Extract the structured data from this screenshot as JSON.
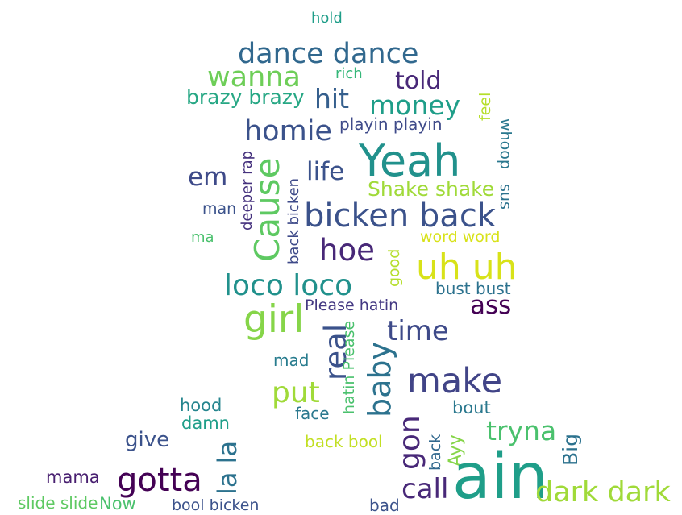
{
  "words": [
    {
      "text": "hold",
      "color": "#1f9e89"
    },
    {
      "text": "dance dance",
      "color": "#31688e"
    },
    {
      "text": "wanna",
      "color": "#6ece58"
    },
    {
      "text": "rich",
      "color": "#35b779"
    },
    {
      "text": "told",
      "color": "#482878"
    },
    {
      "text": "brazy brazy",
      "color": "#26a784"
    },
    {
      "text": "hit",
      "color": "#355f8d"
    },
    {
      "text": "money",
      "color": "#1f9e89"
    },
    {
      "text": "feel",
      "color": "#b5de2b"
    },
    {
      "text": "homie",
      "color": "#3b528b"
    },
    {
      "text": "playin playin",
      "color": "#3e4a89"
    },
    {
      "text": "whoop",
      "color": "#2a788e"
    },
    {
      "text": "Yeah",
      "color": "#21918c"
    },
    {
      "text": "deeper rap",
      "color": "#46327e"
    },
    {
      "text": "Cause",
      "color": "#5ec962"
    },
    {
      "text": "life",
      "color": "#3b528b"
    },
    {
      "text": "em",
      "color": "#3e4a89"
    },
    {
      "text": "Shake shake",
      "color": "#a0da39"
    },
    {
      "text": "sus",
      "color": "#2c728e"
    },
    {
      "text": "back bicken",
      "color": "#3e4a89"
    },
    {
      "text": "man",
      "color": "#3b528b"
    },
    {
      "text": "bicken back",
      "color": "#3b528b"
    },
    {
      "text": "ma",
      "color": "#4ac16d"
    },
    {
      "text": "word word",
      "color": "#d8e219"
    },
    {
      "text": "hoe",
      "color": "#482878"
    },
    {
      "text": "good",
      "color": "#b5de2b"
    },
    {
      "text": "uh uh",
      "color": "#d8e219"
    },
    {
      "text": "loco loco",
      "color": "#21918c"
    },
    {
      "text": "bust bust",
      "color": "#2c728e"
    },
    {
      "text": "Please hatin",
      "color": "#443983"
    },
    {
      "text": "ass",
      "color": "#440154"
    },
    {
      "text": "girl",
      "color": "#86d549"
    },
    {
      "text": "time",
      "color": "#3e4a89"
    },
    {
      "text": "real",
      "color": "#3b528b"
    },
    {
      "text": "hatin Please",
      "color": "#4ac16d"
    },
    {
      "text": "mad",
      "color": "#287c8e"
    },
    {
      "text": "baby",
      "color": "#2c728e"
    },
    {
      "text": "make",
      "color": "#414487"
    },
    {
      "text": "put",
      "color": "#a0da39"
    },
    {
      "text": "hood",
      "color": "#25858e"
    },
    {
      "text": "bout",
      "color": "#2a788e"
    },
    {
      "text": "face",
      "color": "#2a788e"
    },
    {
      "text": "damn",
      "color": "#1f9e89"
    },
    {
      "text": "gon",
      "color": "#482878"
    },
    {
      "text": "tryna",
      "color": "#4ac16d"
    },
    {
      "text": "give",
      "color": "#3b528b"
    },
    {
      "text": "back bool",
      "color": "#c2df23"
    },
    {
      "text": "back",
      "color": "#31688e"
    },
    {
      "text": "Ayy",
      "color": "#86d549"
    },
    {
      "text": "Big",
      "color": "#2c728e"
    },
    {
      "text": "la la",
      "color": "#2c728e"
    },
    {
      "text": "mama",
      "color": "#481f70"
    },
    {
      "text": "gotta",
      "color": "#440154"
    },
    {
      "text": "ain",
      "color": "#1f9e89"
    },
    {
      "text": "call",
      "color": "#482878"
    },
    {
      "text": "dark dark",
      "color": "#a0da39"
    },
    {
      "text": "slide slide",
      "color": "#5ec962"
    },
    {
      "text": "Now",
      "color": "#4ac16d"
    },
    {
      "text": "bool bicken",
      "color": "#3b528b"
    },
    {
      "text": "bad",
      "color": "#3b528b"
    }
  ]
}
